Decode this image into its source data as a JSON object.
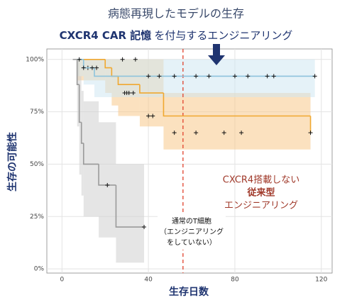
{
  "chart_data": {
    "type": "step",
    "title": "病態再現したモデルの生存",
    "subtitle_bold": "CXCR4 CAR 記憶",
    "subtitle_rest": "を付与するエンジニアリング",
    "x_label": "生存日数",
    "y_label": "生存の可能性",
    "xlim": [
      -7,
      125
    ],
    "ylim": [
      -2,
      105
    ],
    "xticks": [
      0,
      40,
      80,
      120
    ],
    "yticks": [
      {
        "value": 0,
        "label": "0%"
      },
      {
        "value": 25,
        "label": "25%"
      },
      {
        "value": 50,
        "label": "50%"
      },
      {
        "value": 75,
        "label": "75%"
      },
      {
        "value": 100,
        "label": "100%"
      }
    ],
    "grid": true,
    "vline": {
      "x": 56,
      "color": "#e0402a"
    },
    "series": [
      {
        "color": "#f0a830",
        "band_color": "#f7c98a",
        "x": [
          7,
          20,
          23,
          26,
          36,
          47,
          115
        ],
        "values": [
          100,
          96,
          92,
          88,
          84,
          73,
          65
        ],
        "ci_lower": [
          90,
          84,
          78,
          73,
          68,
          57,
          47
        ],
        "ci_upper": [
          100,
          100,
          100,
          100,
          100,
          84,
          84
        ],
        "censor_x": [
          12,
          16,
          29,
          30,
          31,
          33,
          40,
          42,
          52,
          62,
          75,
          83,
          115
        ],
        "censor_y": [
          96,
          96,
          84,
          84,
          84,
          84,
          73,
          73,
          65,
          65,
          65,
          65,
          65
        ]
      },
      {
        "color": "#8ec3dc",
        "band_color": "#cfe8f3",
        "x": [
          7,
          10,
          15,
          117
        ],
        "values": [
          100,
          96,
          92,
          92
        ],
        "ci_lower": [
          92,
          88,
          82,
          82
        ],
        "ci_upper": [
          100,
          100,
          100,
          100
        ],
        "censor_x": [
          8,
          10,
          14,
          28,
          34,
          40,
          45,
          52,
          62,
          68,
          80,
          86,
          95,
          98,
          117
        ],
        "censor_y": [
          100,
          96,
          96,
          100,
          100,
          92,
          92,
          92,
          92,
          92,
          92,
          92,
          92,
          92,
          92
        ]
      },
      {
        "color": "#9a9a9a",
        "band_color": "#cfcfcf",
        "x": [
          5,
          7,
          8,
          9,
          10,
          17,
          25,
          38
        ],
        "values": [
          100,
          88,
          70,
          60,
          50,
          40,
          20,
          20
        ],
        "ci_lower": [
          100,
          68,
          45,
          35,
          25,
          15,
          3,
          3
        ],
        "ci_upper": [
          100,
          100,
          92,
          85,
          80,
          70,
          50,
          50
        ],
        "censor_x": [
          21,
          38
        ],
        "censor_y": [
          40,
          20
        ]
      }
    ],
    "annotations": [
      {
        "lines": [
          "CXCR4搭載しない",
          "従来型",
          "エンジニアリング"
        ]
      },
      {
        "lines": [
          "通常のT細胞",
          "（エンジニアリング",
          "をしていない）"
        ]
      }
    ]
  }
}
